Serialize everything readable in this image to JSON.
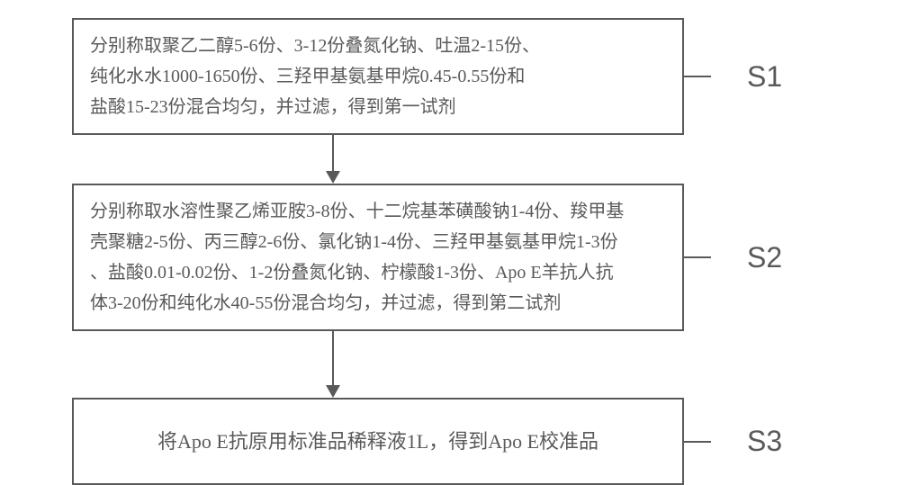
{
  "diagram": {
    "type": "flowchart",
    "direction": "vertical",
    "background_color": "#ffffff",
    "border_color": "#595959",
    "text_color": "#595959",
    "border_width": 2,
    "steps": [
      {
        "id": "S1",
        "label": "S1",
        "lines": [
          "分别称取聚乙二醇5-6份、3-12份叠氮化钠、吐温2-15份、",
          "纯化水水1000-1650份、三羟甲基氨基甲烷0.45-0.55份和",
          "盐酸15-23份混合均匀，并过滤，得到第一试剂"
        ],
        "fontsize": 20,
        "alignment": "left",
        "padding": "12px 18px"
      },
      {
        "id": "S2",
        "label": "S2",
        "lines": [
          "分别称取水溶性聚乙烯亚胺3-8份、十二烷基苯磺酸钠1-4份、羧甲基",
          "壳聚糖2-5份、丙三醇2-6份、氯化钠1-4份、三羟甲基氨基甲烷1-3份",
          "、盐酸0.01-0.02份、1-2份叠氮化钠、柠檬酸1-3份、Apo E羊抗人抗",
          "体3-20份和纯化水40-55份混合均匀，并过滤，得到第二试剂"
        ],
        "fontsize": 20,
        "alignment": "left",
        "padding": "12px 18px"
      },
      {
        "id": "S3",
        "label": "S3",
        "lines": [
          "将Apo E抗原用标准品稀释液1L，得到Apo E校准品"
        ],
        "fontsize": 22,
        "alignment": "center",
        "padding": "28px 18px"
      }
    ],
    "arrows": [
      {
        "from": "S1",
        "to": "S2",
        "length": 40,
        "head_size": 14
      },
      {
        "from": "S2",
        "to": "S3",
        "length": 60,
        "head_size": 14
      }
    ],
    "label_style": {
      "fontsize": 32,
      "font_family": "Arial",
      "color": "#595959",
      "connector_line_width": 30
    }
  }
}
